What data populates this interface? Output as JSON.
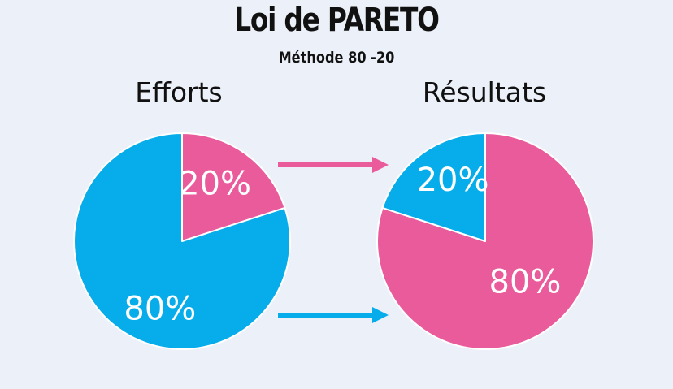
{
  "header": {
    "title": "Loi de PARETO",
    "subtitle": "Méthode 80 -20"
  },
  "chart_data": [
    {
      "type": "pie",
      "title": "Efforts",
      "slices": [
        {
          "label": "20%",
          "value": 20,
          "color": "#ea5b9c"
        },
        {
          "label": "80%",
          "value": 80,
          "color": "#07adea"
        }
      ]
    },
    {
      "type": "pie",
      "title": "Résultats",
      "slices": [
        {
          "label": "80%",
          "value": 80,
          "color": "#ea5b9c"
        },
        {
          "label": "20%",
          "value": 20,
          "color": "#07adea"
        }
      ]
    }
  ],
  "arrows": [
    {
      "icon": "right-arrow-icon",
      "color": "#ea5b9c"
    },
    {
      "icon": "right-arrow-icon",
      "color": "#07adea"
    }
  ]
}
